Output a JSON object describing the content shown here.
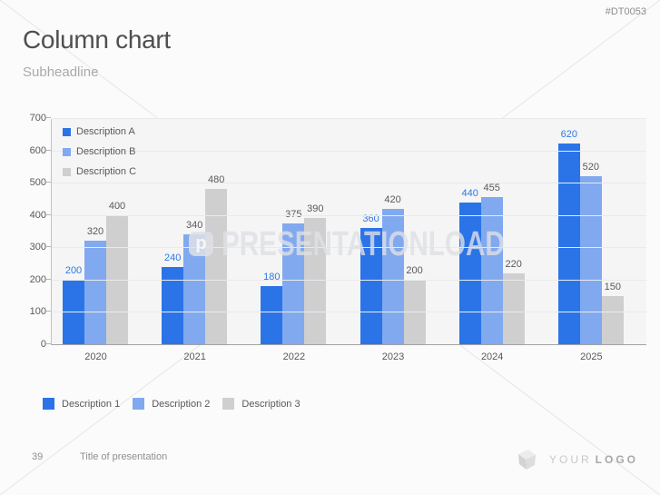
{
  "slide_code": "#DT0053",
  "header": {
    "title": "Column chart",
    "subtitle": "Subheadline"
  },
  "chart_data": {
    "type": "bar",
    "title": "",
    "xlabel": "",
    "ylabel": "",
    "categories": [
      "2020",
      "2021",
      "2022",
      "2023",
      "2024",
      "2025"
    ],
    "series": [
      {
        "name": "Description A",
        "color": "#2b74e8",
        "label_color": "#2e79df",
        "values": [
          200,
          240,
          180,
          360,
          440,
          620
        ]
      },
      {
        "name": "Description B",
        "color": "#81a9ef",
        "label_color": "#595959",
        "values": [
          320,
          340,
          375,
          420,
          455,
          520
        ]
      },
      {
        "name": "Description C",
        "color": "#cfcfd0",
        "label_color": "#595959",
        "values": [
          400,
          480,
          390,
          200,
          220,
          150
        ]
      }
    ],
    "ylim": [
      0,
      700
    ],
    "yticks": [
      0,
      100,
      200,
      300,
      400,
      500,
      600,
      700
    ],
    "grid": true,
    "legend_position": "top-left-inside",
    "data_labels": true
  },
  "bottom_legend": {
    "items": [
      {
        "label": "Description 1",
        "color": "#2b74e8"
      },
      {
        "label": "Description 2",
        "color": "#81a9ef"
      },
      {
        "label": "Description 3",
        "color": "#cfcfd0"
      }
    ]
  },
  "watermark": {
    "logo_letter": "p",
    "text": "PRESENTATIONLOAD"
  },
  "footer": {
    "page_number": "39",
    "presentation_title": "Title of presentation",
    "logo_text_light": "YOUR",
    "logo_text_bold": "LOGO"
  }
}
